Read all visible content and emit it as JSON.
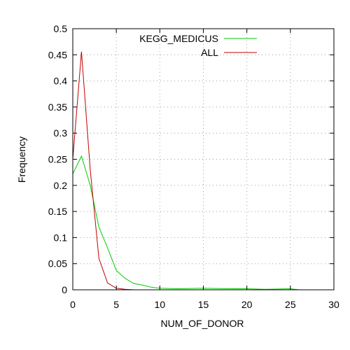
{
  "chart_data": {
    "type": "line",
    "xlabel": "NUM_OF_DONOR",
    "ylabel": "Frequency",
    "xlim": [
      0,
      30
    ],
    "ylim": [
      0,
      0.5
    ],
    "x_ticks": [
      "0",
      "5",
      "10",
      "15",
      "20",
      "25",
      "30"
    ],
    "y_ticks": [
      "0",
      "0.05",
      "0.1",
      "0.15",
      "0.2",
      "0.25",
      "0.3",
      "0.35",
      "0.4",
      "0.45",
      "0.5"
    ],
    "grid": true,
    "legend_position": "top-center",
    "series": [
      {
        "name": "KEGG_MEDICUS",
        "color": "#00cc00",
        "x": [
          0,
          1,
          2,
          3,
          4,
          5,
          6,
          7,
          8,
          9,
          10,
          12,
          15,
          18,
          20,
          22,
          25,
          26
        ],
        "y": [
          0.222,
          0.256,
          0.2,
          0.12,
          0.08,
          0.037,
          0.022,
          0.012,
          0.009,
          0.005,
          0.003,
          0.002,
          0.003,
          0.002,
          0.002,
          0.001,
          0.002,
          0.0
        ]
      },
      {
        "name": "ALL",
        "color": "#c00000",
        "x": [
          0,
          1,
          2,
          3,
          4,
          5,
          6,
          7
        ],
        "y": [
          0.25,
          0.456,
          0.23,
          0.06,
          0.013,
          0.003,
          0.001,
          0.0
        ]
      }
    ]
  }
}
